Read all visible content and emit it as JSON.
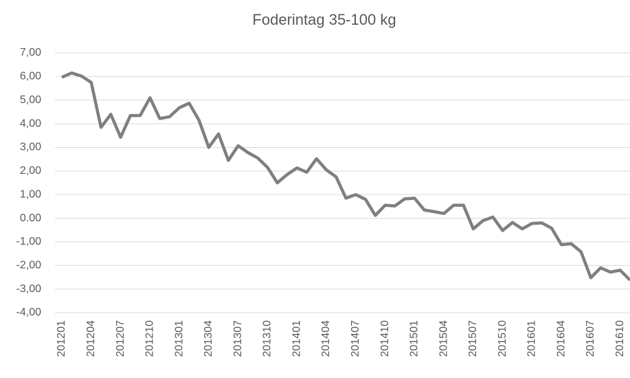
{
  "chart_data": {
    "type": "line",
    "title": "Foderintag 35-100 kg",
    "categories": [
      "201201",
      null,
      null,
      "201204",
      null,
      null,
      "201207",
      null,
      null,
      "201210",
      null,
      null,
      "201301",
      null,
      null,
      "201304",
      null,
      null,
      "201307",
      null,
      null,
      "201310",
      null,
      null,
      "201401",
      null,
      null,
      "201404",
      null,
      null,
      "201407",
      null,
      null,
      "201410",
      null,
      null,
      "201501",
      null,
      null,
      "201504",
      null,
      null,
      "201507",
      null,
      null,
      "201510",
      null,
      null,
      "201601",
      null,
      null,
      "201604",
      null,
      null,
      "201607",
      null,
      null,
      "201610",
      null
    ],
    "series": [
      {
        "name": "Foderintag 35-100 kg",
        "color": "#7f7f7f",
        "values": [
          5.97,
          6.15,
          6.02,
          5.75,
          3.85,
          4.4,
          3.43,
          4.35,
          4.35,
          5.1,
          4.22,
          4.3,
          4.68,
          4.87,
          4.15,
          3.0,
          3.57,
          2.45,
          3.07,
          2.78,
          2.55,
          2.15,
          1.5,
          1.85,
          2.13,
          1.95,
          2.52,
          2.05,
          1.75,
          0.85,
          1.0,
          0.8,
          0.12,
          0.55,
          0.52,
          0.82,
          0.85,
          0.35,
          0.28,
          0.2,
          0.55,
          0.55,
          -0.45,
          -0.1,
          0.05,
          -0.52,
          -0.18,
          -0.45,
          -0.22,
          -0.2,
          -0.42,
          -1.12,
          -1.08,
          -1.42,
          -2.52,
          -2.1,
          -2.28,
          -2.2,
          -2.62
        ]
      }
    ],
    "ylim": [
      -4,
      7
    ],
    "yticks": [
      {
        "value": 7,
        "label": "7,00"
      },
      {
        "value": 6,
        "label": "6,00"
      },
      {
        "value": 5,
        "label": "5,00"
      },
      {
        "value": 4,
        "label": "4,00"
      },
      {
        "value": 3,
        "label": "3,00"
      },
      {
        "value": 2,
        "label": "2,00"
      },
      {
        "value": 1,
        "label": "1,00"
      },
      {
        "value": 0,
        "label": "0.00"
      },
      {
        "value": -1,
        "label": "-1,00"
      },
      {
        "value": -2,
        "label": "-2,00"
      },
      {
        "value": -3,
        "label": "-3,00"
      },
      {
        "value": -4,
        "label": "-4,00"
      }
    ],
    "grid": true
  }
}
